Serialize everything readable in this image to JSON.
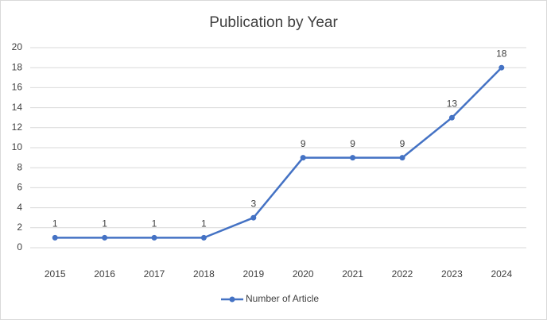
{
  "chart_data": {
    "type": "line",
    "title": "Publication by Year",
    "categories": [
      "2015",
      "2016",
      "2017",
      "2018",
      "2019",
      "2020",
      "2021",
      "2022",
      "2023",
      "2024"
    ],
    "series": [
      {
        "name": "Number of Article",
        "color": "#4472c4",
        "values": [
          1,
          1,
          1,
          1,
          3,
          9,
          9,
          9,
          13,
          18
        ]
      }
    ],
    "ylim": [
      0,
      20
    ],
    "yticks": [
      0,
      2,
      4,
      6,
      8,
      10,
      12,
      14,
      16,
      18,
      20
    ],
    "grid": true,
    "legend": "bottom",
    "data_labels": true
  }
}
